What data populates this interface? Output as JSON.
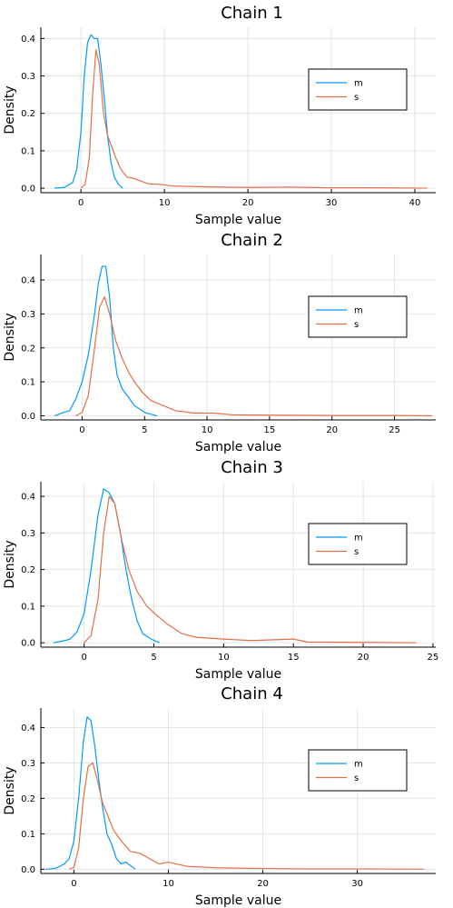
{
  "colors": {
    "m": "#009af9",
    "s": "#e26f46"
  },
  "chart_data": [
    {
      "type": "line",
      "title": "Chain 1",
      "xlabel": "Sample value",
      "ylabel": "Density",
      "xlim": [
        -4.8,
        42.5
      ],
      "ylim": [
        -0.012,
        0.43
      ],
      "xticks": [
        0,
        10,
        20,
        30,
        40
      ],
      "yticks": [
        0.0,
        0.1,
        0.2,
        0.3,
        0.4
      ],
      "grid": true,
      "legend": "right",
      "series": [
        {
          "name": "m",
          "color": "#009af9",
          "x": [
            -3.2,
            -2,
            -1,
            -0.5,
            0,
            0.4,
            0.8,
            1.2,
            1.6,
            2,
            2.4,
            2.8,
            3.2,
            3.6,
            4,
            4.5,
            5
          ],
          "y": [
            0,
            0.002,
            0.015,
            0.05,
            0.15,
            0.3,
            0.39,
            0.41,
            0.4,
            0.4,
            0.33,
            0.24,
            0.14,
            0.07,
            0.03,
            0.01,
            0
          ]
        },
        {
          "name": "s",
          "color": "#e26f46",
          "x": [
            0,
            0.5,
            1,
            1.4,
            1.8,
            2.2,
            2.7,
            3.2,
            3.7,
            4.2,
            4.8,
            5.5,
            6.5,
            8,
            9.5,
            11,
            14,
            20,
            25,
            30,
            35,
            41.5
          ],
          "y": [
            0,
            0.01,
            0.08,
            0.25,
            0.37,
            0.33,
            0.2,
            0.14,
            0.11,
            0.08,
            0.05,
            0.03,
            0.025,
            0.012,
            0.01,
            0.006,
            0.004,
            0.002,
            0.003,
            0.001,
            0.001,
            0
          ]
        }
      ]
    },
    {
      "type": "line",
      "title": "Chain 2",
      "xlabel": "Sample value",
      "ylabel": "Density",
      "xlim": [
        -3.3,
        28.3
      ],
      "ylim": [
        -0.012,
        0.475
      ],
      "xticks": [
        0,
        5,
        10,
        15,
        20,
        25
      ],
      "yticks": [
        0.0,
        0.1,
        0.2,
        0.3,
        0.4
      ],
      "grid": true,
      "legend": "right",
      "series": [
        {
          "name": "m",
          "color": "#009af9",
          "x": [
            -2.2,
            -1.5,
            -1,
            -0.5,
            0,
            0.5,
            1,
            1.3,
            1.6,
            1.9,
            2.2,
            2.5,
            2.8,
            3.2,
            3.6,
            4.2,
            5,
            6
          ],
          "y": [
            0,
            0.01,
            0.015,
            0.05,
            0.1,
            0.18,
            0.3,
            0.39,
            0.44,
            0.44,
            0.35,
            0.2,
            0.12,
            0.08,
            0.06,
            0.03,
            0.01,
            0
          ]
        },
        {
          "name": "s",
          "color": "#e26f46",
          "x": [
            -0.5,
            0,
            0.5,
            1,
            1.4,
            1.8,
            2.2,
            2.7,
            3.2,
            3.7,
            4.2,
            4.8,
            5.5,
            6.5,
            7.5,
            9,
            10.5,
            12,
            15,
            20,
            25,
            28
          ],
          "y": [
            0,
            0.01,
            0.06,
            0.2,
            0.32,
            0.35,
            0.3,
            0.22,
            0.17,
            0.13,
            0.1,
            0.07,
            0.045,
            0.03,
            0.015,
            0.008,
            0.008,
            0.003,
            0.002,
            0.001,
            0.001,
            0
          ]
        }
      ]
    },
    {
      "type": "line",
      "title": "Chain 3",
      "xlabel": "Sample value",
      "ylabel": "Density",
      "xlim": [
        -3.1,
        25.2
      ],
      "ylim": [
        -0.012,
        0.44
      ],
      "xticks": [
        0,
        5,
        10,
        15,
        20,
        25
      ],
      "yticks": [
        0.0,
        0.1,
        0.2,
        0.3,
        0.4
      ],
      "grid": true,
      "legend": "right",
      "series": [
        {
          "name": "m",
          "color": "#009af9",
          "x": [
            -2.2,
            -1.5,
            -1,
            -0.5,
            0,
            0.5,
            1,
            1.4,
            1.8,
            2.2,
            2.6,
            3,
            3.4,
            3.8,
            4.2,
            4.8,
            5.4
          ],
          "y": [
            0,
            0.005,
            0.01,
            0.03,
            0.08,
            0.2,
            0.35,
            0.42,
            0.41,
            0.38,
            0.3,
            0.2,
            0.12,
            0.06,
            0.025,
            0.01,
            0
          ]
        },
        {
          "name": "s",
          "color": "#e26f46",
          "x": [
            0,
            0.5,
            1,
            1.4,
            1.8,
            2.2,
            2.7,
            3.2,
            3.8,
            4.5,
            5.2,
            6,
            7,
            8,
            10,
            12,
            15,
            16,
            20,
            23.8
          ],
          "y": [
            0,
            0.02,
            0.12,
            0.3,
            0.4,
            0.38,
            0.28,
            0.2,
            0.14,
            0.1,
            0.075,
            0.05,
            0.025,
            0.015,
            0.01,
            0.006,
            0.01,
            0.002,
            0.001,
            0
          ]
        }
      ]
    },
    {
      "type": "line",
      "title": "Chain 4",
      "xlabel": "Sample value",
      "ylabel": "Density",
      "xlim": [
        -3.5,
        38.3
      ],
      "ylim": [
        -0.012,
        0.455
      ],
      "xticks": [
        0,
        10,
        20,
        30
      ],
      "yticks": [
        0.0,
        0.1,
        0.2,
        0.3,
        0.4
      ],
      "grid": true,
      "legend": "right",
      "series": [
        {
          "name": "m",
          "color": "#009af9",
          "x": [
            -3,
            -2,
            -1,
            -0.5,
            0,
            0.5,
            1,
            1.4,
            1.8,
            2.2,
            2.6,
            3,
            3.5,
            4,
            4.5,
            5,
            5.5,
            6,
            6.5
          ],
          "y": [
            0,
            0.002,
            0.015,
            0.03,
            0.08,
            0.2,
            0.36,
            0.43,
            0.42,
            0.35,
            0.26,
            0.18,
            0.1,
            0.07,
            0.03,
            0.015,
            0.02,
            0.01,
            0
          ]
        },
        {
          "name": "s",
          "color": "#e26f46",
          "x": [
            -0.5,
            0,
            0.5,
            1,
            1.5,
            2,
            2.5,
            3,
            3.6,
            4.2,
            5,
            6,
            7,
            8,
            9,
            10,
            12,
            15,
            20,
            25,
            30,
            37
          ],
          "y": [
            0,
            0.005,
            0.06,
            0.2,
            0.29,
            0.3,
            0.25,
            0.19,
            0.15,
            0.11,
            0.08,
            0.05,
            0.045,
            0.03,
            0.015,
            0.02,
            0.008,
            0.004,
            0.002,
            0.001,
            0.001,
            0
          ]
        }
      ]
    }
  ]
}
